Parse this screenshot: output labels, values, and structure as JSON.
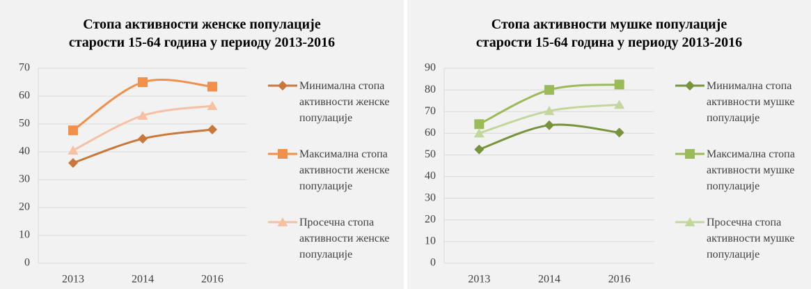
{
  "chart_data": [
    {
      "type": "line",
      "title": [
        "Стопа активности женске популације",
        "старости 15-64 година у периоду 2013-2016"
      ],
      "categories": [
        "2013",
        "2014",
        "2016"
      ],
      "series": [
        {
          "name": "Минимална стопа активности женске популације",
          "color": "#c9773a",
          "marker": "diamond",
          "values": [
            36,
            44.7,
            48
          ]
        },
        {
          "name": "Максимална стопа активности женске популације",
          "color": "#f0904a",
          "marker": "square",
          "values": [
            47.7,
            65,
            63.4
          ]
        },
        {
          "name": "Просечна стопа активности женске популације",
          "color": "#f6c0a2",
          "marker": "triangle",
          "values": [
            40.5,
            53,
            56.5
          ]
        }
      ],
      "ylim": [
        0,
        70
      ],
      "yticks": [
        0,
        10,
        20,
        30,
        40,
        50,
        60,
        70
      ],
      "grid": true,
      "legend": "right"
    },
    {
      "type": "line",
      "title": [
        "Стопа активности мушке популације",
        "старости 15-64 година у периоду 2013-2016"
      ],
      "categories": [
        "2013",
        "2014",
        "2016"
      ],
      "series": [
        {
          "name": "Минимална стопа активности мушке популације",
          "color": "#77933c",
          "marker": "diamond",
          "values": [
            52.5,
            63.7,
            60.3
          ]
        },
        {
          "name": "Максимална стопа активности мушке популације",
          "color": "#9bbb59",
          "marker": "square",
          "values": [
            64.2,
            80,
            82.5
          ]
        },
        {
          "name": "Просечна стопа активности мушке популације",
          "color": "#c3d69b",
          "marker": "triangle",
          "values": [
            60,
            70.3,
            73.2
          ]
        }
      ],
      "ylim": [
        0,
        90
      ],
      "yticks": [
        0,
        10,
        20,
        30,
        40,
        50,
        60,
        70,
        80,
        90
      ],
      "grid": true,
      "legend": "right"
    }
  ]
}
